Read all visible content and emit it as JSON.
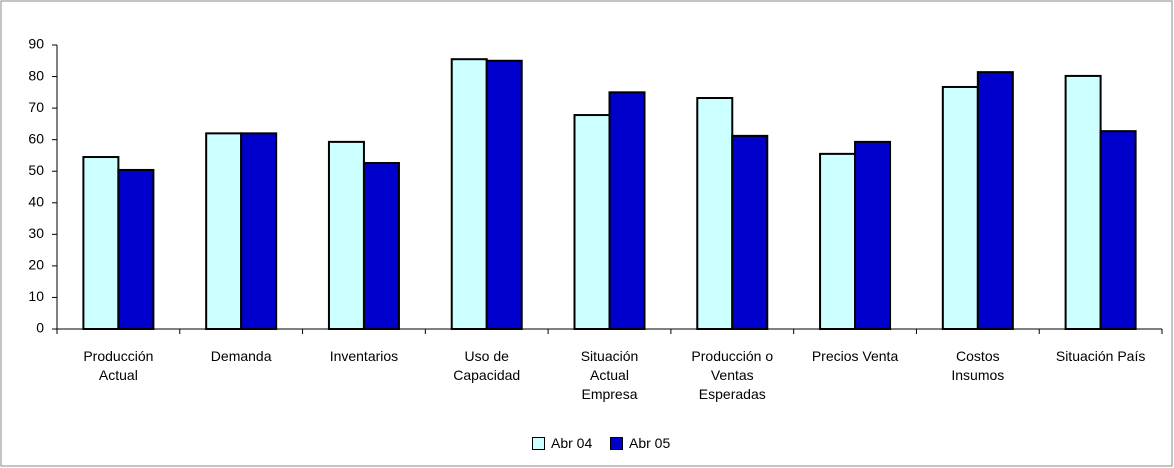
{
  "chart_data": {
    "type": "bar",
    "categories": [
      "Producción\nActual",
      "Demanda",
      "Inventarios",
      "Uso de\nCapacidad",
      "Situación\nActual\nEmpresa",
      "Producción o\nVentas\nEsperadas",
      "Precios Venta",
      "Costos\nInsumos",
      "Situación País"
    ],
    "series": [
      {
        "name": "Abr 04",
        "color": "#ccffff",
        "values": [
          54.5,
          62,
          59.3,
          85.5,
          67.8,
          73.2,
          55.5,
          76.7,
          80.2
        ]
      },
      {
        "name": "Abr 05",
        "color": "#0000cc",
        "values": [
          50.4,
          62,
          52.6,
          85,
          75,
          61.2,
          59.3,
          81.4,
          62.7
        ]
      }
    ],
    "ylim": [
      0,
      90
    ],
    "yticks": [
      0,
      10,
      20,
      30,
      40,
      50,
      60,
      70,
      80,
      90
    ],
    "grid": false
  }
}
